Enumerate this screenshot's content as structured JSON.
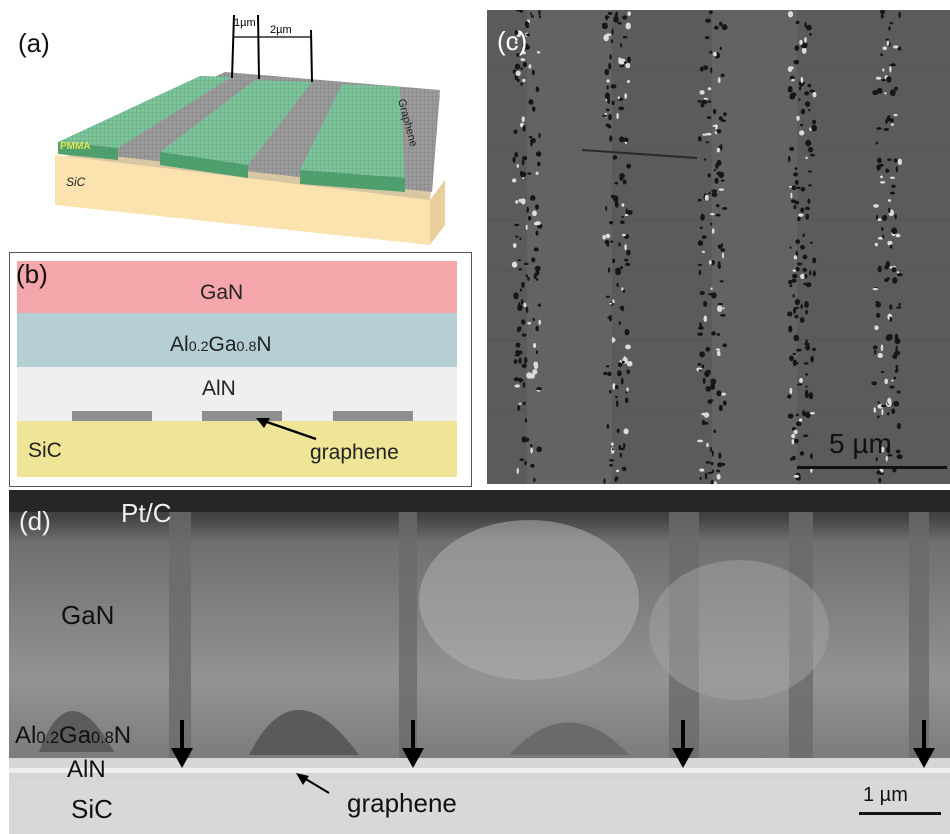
{
  "panel_a": {
    "label": "(a)",
    "dim_1": "1µm",
    "dim_2": "2µm",
    "pmma": "PMMA",
    "graphene": "Graphene",
    "sic": "SiC"
  },
  "panel_b": {
    "label": "(b)",
    "gan": "GaN",
    "algan_al": "Al",
    "algan_x": "0.2",
    "algan_ga": "Ga",
    "algan_y": "0.8",
    "algan_n": "N",
    "aln": "AlN",
    "sic": "SiC",
    "graphene": "graphene",
    "colors": {
      "gan": "#f4a6ab",
      "algan": "#b5cfd5",
      "aln": "#efefef",
      "sic": "#eee596",
      "graphene": "#8f8f8f"
    }
  },
  "panel_c": {
    "label": "(c)",
    "scale": "5 µm"
  },
  "panel_d": {
    "label": "(d)",
    "ptc": "Pt/C",
    "gan": "GaN",
    "algan_al": "Al",
    "algan_x": "0.2",
    "algan_ga": "Ga",
    "algan_y": "0.8",
    "algan_n": "N",
    "aln": "AlN",
    "sic": "SiC",
    "graphene": "graphene",
    "scale": "1 µm"
  }
}
